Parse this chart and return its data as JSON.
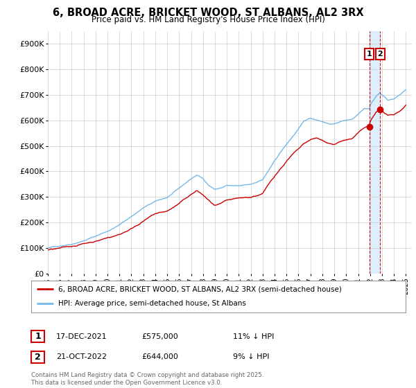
{
  "title": "6, BROAD ACRE, BRICKET WOOD, ST ALBANS, AL2 3RX",
  "subtitle": "Price paid vs. HM Land Registry's House Price Index (HPI)",
  "xlim_start": 1995.0,
  "xlim_end": 2025.5,
  "ylim_min": 0,
  "ylim_max": 950000,
  "yticks": [
    0,
    100000,
    200000,
    300000,
    400000,
    500000,
    600000,
    700000,
    800000,
    900000
  ],
  "ytick_labels": [
    "£0",
    "£100K",
    "£200K",
    "£300K",
    "£400K",
    "£500K",
    "£600K",
    "£700K",
    "£800K",
    "£900K"
  ],
  "hpi_color": "#74b9e8",
  "price_color": "#cc0000",
  "vline_color": "#cc0000",
  "shade_color": "#d0e8f8",
  "transaction1_x": 2021.96,
  "transaction1_y": 575000,
  "transaction1_label": "1",
  "transaction2_x": 2022.8,
  "transaction2_y": 644000,
  "transaction2_label": "2",
  "legend_line1": "6, BROAD ACRE, BRICKET WOOD, ST ALBANS, AL2 3RX (semi-detached house)",
  "legend_line2": "HPI: Average price, semi-detached house, St Albans",
  "table_row1_num": "1",
  "table_row1_date": "17-DEC-2021",
  "table_row1_price": "£575,000",
  "table_row1_hpi": "11% ↓ HPI",
  "table_row2_num": "2",
  "table_row2_date": "21-OCT-2022",
  "table_row2_price": "£644,000",
  "table_row2_hpi": "9% ↓ HPI",
  "footer": "Contains HM Land Registry data © Crown copyright and database right 2025.\nThis data is licensed under the Open Government Licence v3.0.",
  "background_color": "#ffffff",
  "grid_color": "#cccccc"
}
